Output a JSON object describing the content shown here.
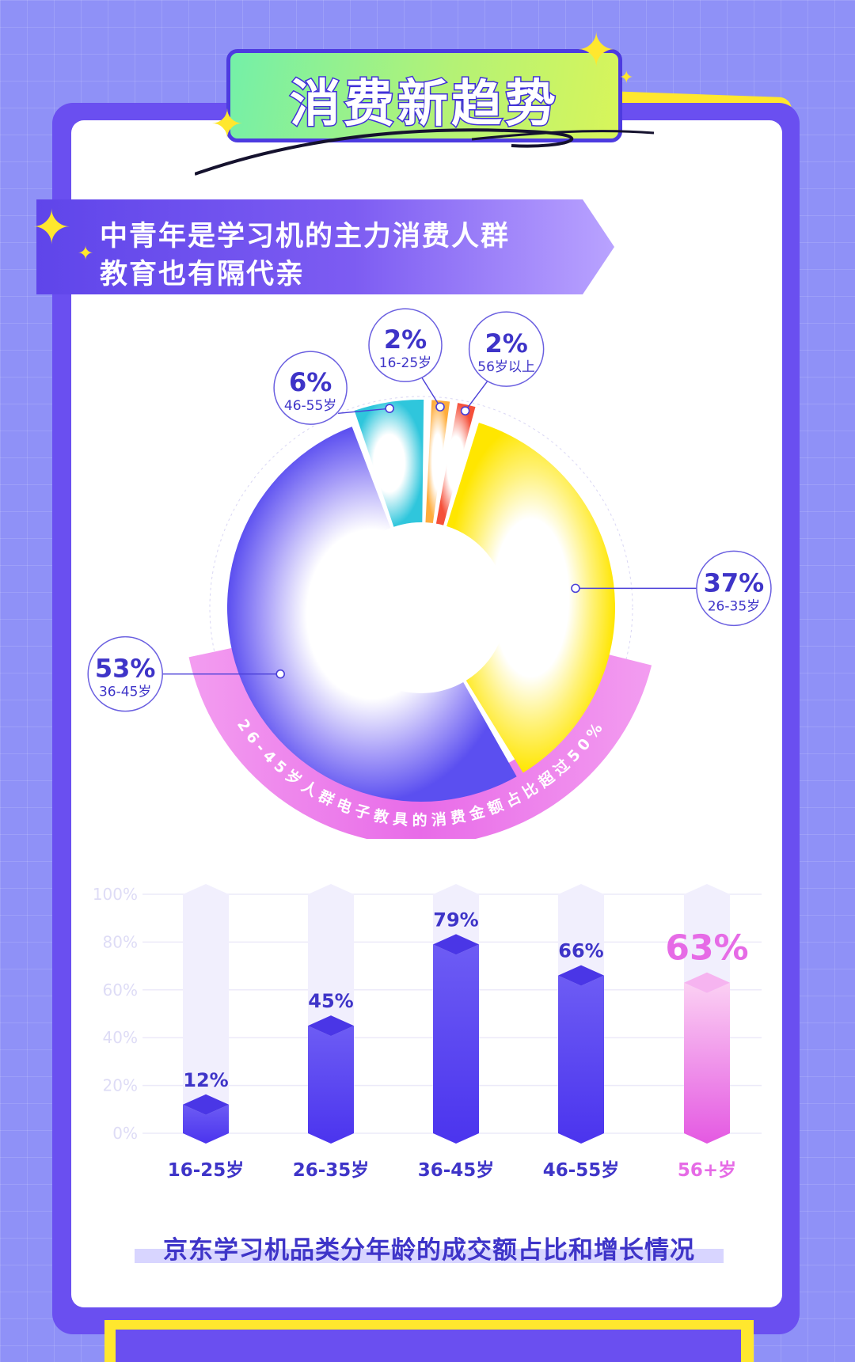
{
  "header": {
    "title": "消费新趋势",
    "subtitle_line_1": "中青年是学习机的主力消费人群",
    "subtitle_line_2": "教育也有隔代亲"
  },
  "colors": {
    "frame": "#6a4ff0",
    "accent_yellow": "#ffe72e",
    "text_primary": "#3e34c8",
    "highlight_pink": "#e66be6",
    "bar_purple": "#5b3ff0"
  },
  "chart_data": [
    {
      "type": "pie",
      "variant": "donut",
      "slices": [
        {
          "label": "56岁以上",
          "value": 2,
          "value_label": "2%",
          "color": "#f5503a"
        },
        {
          "label": "26-35岁",
          "value": 37,
          "value_label": "37%",
          "color": "#ffe600"
        },
        {
          "label": "36-45岁",
          "value": 53,
          "value_label": "53%",
          "color": "#5b4ff0"
        },
        {
          "label": "46-55岁",
          "value": 6,
          "value_label": "6%",
          "color": "#2fc6dc"
        },
        {
          "label": "16-25岁",
          "value": 2,
          "value_label": "2%",
          "color": "#ffad3c"
        }
      ],
      "arc_annotation": "26-45岁人群电子教具的消费金额占比超过50%"
    },
    {
      "type": "bar",
      "categories": [
        "16-25岁",
        "26-35岁",
        "36-45岁",
        "46-55岁",
        "56+岁"
      ],
      "values": [
        12,
        45,
        79,
        66,
        63
      ],
      "value_labels": [
        "12%",
        "45%",
        "79%",
        "66%",
        "63%"
      ],
      "highlight_index": 4,
      "ylim": [
        0,
        100
      ],
      "yticks": [
        "0%",
        "20%",
        "40%",
        "60%",
        "80%",
        "100%"
      ],
      "grid": true,
      "title": "京东学习机品类分年龄的成交额占比和增长情况"
    }
  ]
}
